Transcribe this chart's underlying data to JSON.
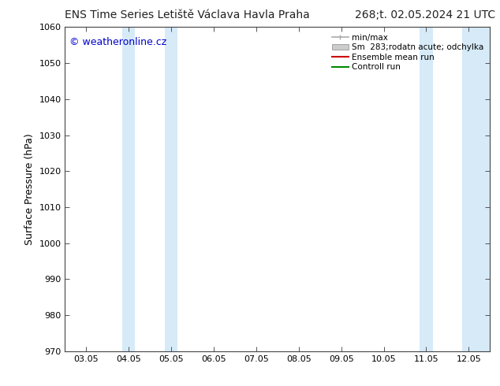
{
  "title_left": "ENS Time Series Letiště Václava Havla Praha",
  "title_right": "268;t. 02.05.2024 21 UTC",
  "ylabel": "Surface Pressure (hPa)",
  "ylim": [
    970,
    1060
  ],
  "yticks": [
    970,
    980,
    990,
    1000,
    1010,
    1020,
    1030,
    1040,
    1050,
    1060
  ],
  "xtick_labels": [
    "03.05",
    "04.05",
    "05.05",
    "06.05",
    "07.05",
    "08.05",
    "09.05",
    "10.05",
    "11.05",
    "12.05"
  ],
  "xtick_positions": [
    0,
    1,
    2,
    3,
    4,
    5,
    6,
    7,
    8,
    9
  ],
  "xlim": [
    -0.5,
    9.5
  ],
  "watermark": "© weatheronline.cz",
  "watermark_color": "#0000cc",
  "background_color": "#ffffff",
  "plot_bg_color": "#ffffff",
  "shaded_bands": [
    {
      "x_start": 0.85,
      "x_end": 1.15,
      "color": "#d6eaf8"
    },
    {
      "x_start": 1.85,
      "x_end": 2.15,
      "color": "#d6eaf8"
    },
    {
      "x_start": 7.85,
      "x_end": 8.15,
      "color": "#d6eaf8"
    },
    {
      "x_start": 8.85,
      "x_end": 9.5,
      "color": "#d6eaf8"
    }
  ],
  "legend_entries": [
    {
      "label": "min/max",
      "color": "#aaaaaa",
      "style": "minmax"
    },
    {
      "label": "Sm  283;rodatn acute; odchylka",
      "color": "#cccccc",
      "style": "fill"
    },
    {
      "label": "Ensemble mean run",
      "color": "#cc0000",
      "style": "line"
    },
    {
      "label": "Controll run",
      "color": "#008800",
      "style": "line"
    }
  ],
  "title_fontsize": 10,
  "tick_fontsize": 8,
  "ylabel_fontsize": 9,
  "watermark_fontsize": 9,
  "legend_fontsize": 7.5
}
